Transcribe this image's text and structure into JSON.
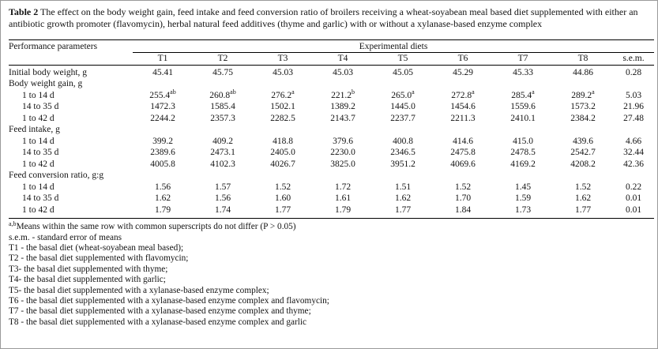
{
  "caption": {
    "label": "Table 2",
    "text": "The effect on the body weight gain, feed intake and feed conversion ratio of broilers receiving a wheat-soyabean meal based diet supplemented with either an antibiotic growth promoter (flavomycin), herbal natural feed additives (thyme and garlic) with or without a xylanase-based enzyme complex"
  },
  "table": {
    "col1_header": "Performance parameters",
    "span_header": "Experimental diets",
    "columns": [
      "T1",
      "T2",
      "T3",
      "T4",
      "T5",
      "T6",
      "T7",
      "T8",
      "s.e.m."
    ],
    "rows": [
      {
        "type": "data",
        "indent": false,
        "label": "Initial body weight, g",
        "values": [
          "45.41",
          "45.75",
          "45.03",
          "45.03",
          "45.05",
          "45.29",
          "45.33",
          "44.86",
          "0.28"
        ]
      },
      {
        "type": "section",
        "label": "Body weight gain, g"
      },
      {
        "type": "data",
        "indent": true,
        "label": "1 to 14 d",
        "values": [
          "255.4^ab",
          "260.8^ab",
          "276.2^a",
          "221.2^b",
          "265.0^a",
          "272.8^a",
          "285.4^a",
          "289.2^a",
          "5.03"
        ]
      },
      {
        "type": "data",
        "indent": true,
        "label": "14 to 35 d",
        "values": [
          "1472.3",
          "1585.4",
          "1502.1",
          "1389.2",
          "1445.0",
          "1454.6",
          "1559.6",
          "1573.2",
          "21.96"
        ]
      },
      {
        "type": "data",
        "indent": true,
        "label": "1 to 42 d",
        "values": [
          "2244.2",
          "2357.3",
          "2282.5",
          "2143.7",
          "2237.7",
          "2211.3",
          "2410.1",
          "2384.2",
          "27.48"
        ]
      },
      {
        "type": "section",
        "label": "Feed intake, g"
      },
      {
        "type": "data",
        "indent": true,
        "label": "1 to 14 d",
        "values": [
          "399.2",
          "409.2",
          "418.8",
          "379.6",
          "400.8",
          "414.6",
          "415.0",
          "439.6",
          "4.66"
        ]
      },
      {
        "type": "data",
        "indent": true,
        "label": "14 to 35 d",
        "values": [
          "2389.6",
          "2473.1",
          "2405.0",
          "2230.0",
          "2346.5",
          "2475.8",
          "2478.5",
          "2542.7",
          "32.44"
        ]
      },
      {
        "type": "data",
        "indent": true,
        "label": "1 to 42 d",
        "values": [
          "4005.8",
          "4102.3",
          "4026.7",
          "3825.0",
          "3951.2",
          "4069.6",
          "4169.2",
          "4208.2",
          "42.36"
        ]
      },
      {
        "type": "section",
        "label": "Feed conversion ratio, g:g"
      },
      {
        "type": "data",
        "indent": true,
        "label": "1 to 14 d",
        "values": [
          "1.56",
          "1.57",
          "1.52",
          "1.72",
          "1.51",
          "1.52",
          "1.45",
          "1.52",
          "0.22"
        ]
      },
      {
        "type": "data",
        "indent": true,
        "label": "14 to 35 d",
        "values": [
          "1.62",
          "1.56",
          "1.60",
          "1.61",
          "1.62",
          "1.70",
          "1.59",
          "1.62",
          "0.01"
        ]
      },
      {
        "type": "data",
        "indent": true,
        "label": "1 to 42 d",
        "values": [
          "1.79",
          "1.74",
          "1.77",
          "1.79",
          "1.77",
          "1.84",
          "1.73",
          "1.77",
          "0.01"
        ]
      }
    ]
  },
  "footnotes": [
    {
      "sup": "a,b",
      "text": "Means within the same row with common superscripts do not differ (P > 0.05)"
    },
    {
      "text": "s.e.m. - standard error of means"
    },
    {
      "text": "T1 - the basal diet (wheat-soyabean meal based);"
    },
    {
      "text": "T2 - the basal diet supplemented with flavomycin;"
    },
    {
      "text": "T3-  the basal diet supplemented with thyme;"
    },
    {
      "text": "T4-  the basal diet supplemented with garlic;"
    },
    {
      "text": "T5-  the basal diet supplemented with a xylanase-based enzyme complex;"
    },
    {
      "text": "T6 - the basal diet supplemented with a xylanase-based enzyme complex and flavomycin;"
    },
    {
      "text": "T7 - the basal diet supplemented with a xylanase-based enzyme complex and thyme;"
    },
    {
      "text": "T8 - the basal diet supplemented with a xylanase-based enzyme complex and garlic"
    }
  ],
  "colors": {
    "text": "#131313",
    "rule": "#000000",
    "background": "#ffffff",
    "page_border": "#9a9a9a"
  }
}
